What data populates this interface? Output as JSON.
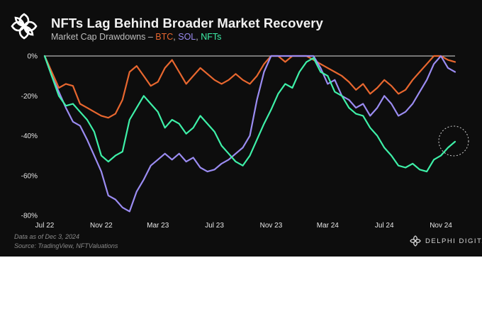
{
  "header": {
    "title": "NFTs Lag Behind Broader Market Recovery",
    "subtitle_prefix": "Market Cap Drawdowns – ",
    "subtitle_btc": "BTC",
    "subtitle_sep1": ", ",
    "subtitle_sol": "SOL",
    "subtitle_sep2": ", ",
    "subtitle_nft": "NFTs",
    "logo_icon": "delphi-knot-icon"
  },
  "footer": {
    "note": "Data as of Dec 3, 2024",
    "source": "Source: TradingView, NFTValuations",
    "brand": "DELPHI DIGITAL"
  },
  "colors": {
    "background": "#0d0d0d",
    "btc": "#e8672f",
    "sol": "#9b8cf2",
    "nfts": "#3ef0a8",
    "highlight_circle": "#cfcfcf"
  },
  "chart_data": {
    "type": "line",
    "title": "NFTs Lag Behind Broader Market Recovery",
    "subtitle": "Market Cap Drawdowns – BTC, SOL, NFTs",
    "x_start": "2022-07",
    "x_end": "2024-12",
    "xlim": [
      0,
      29
    ],
    "ylim": [
      -80,
      0
    ],
    "y_ticks": [
      0,
      -20,
      -40,
      -60,
      -80
    ],
    "y_tick_labels": [
      "0%",
      "-20%",
      "-40%",
      "-60%",
      "-80%"
    ],
    "x_ticks": [
      0,
      4,
      8,
      12,
      16,
      20,
      24,
      28
    ],
    "x_tick_labels": [
      "Jul 22",
      "Nov 22",
      "Mar 23",
      "Jul 23",
      "Nov 23",
      "Mar 24",
      "Jul 24",
      "Nov 24"
    ],
    "legend": "in-subtitle",
    "grid": false,
    "annotation": "dotted circle around latest NFT value",
    "series": [
      {
        "name": "BTC",
        "color": "#e8672f",
        "points": [
          [
            0,
            0
          ],
          [
            0.5,
            -8
          ],
          [
            1,
            -16
          ],
          [
            1.5,
            -14
          ],
          [
            2,
            -15
          ],
          [
            2.5,
            -24
          ],
          [
            3,
            -26
          ],
          [
            3.5,
            -28
          ],
          [
            4,
            -30
          ],
          [
            4.5,
            -31
          ],
          [
            5,
            -29
          ],
          [
            5.5,
            -22
          ],
          [
            6,
            -8
          ],
          [
            6.5,
            -5
          ],
          [
            7,
            -10
          ],
          [
            7.5,
            -15
          ],
          [
            8,
            -13
          ],
          [
            8.5,
            -6
          ],
          [
            9,
            -2
          ],
          [
            9.5,
            -8
          ],
          [
            10,
            -14
          ],
          [
            10.5,
            -10
          ],
          [
            11,
            -6
          ],
          [
            11.5,
            -9
          ],
          [
            12,
            -12
          ],
          [
            12.5,
            -14
          ],
          [
            13,
            -12
          ],
          [
            13.5,
            -9
          ],
          [
            14,
            -12
          ],
          [
            14.5,
            -14
          ],
          [
            15,
            -10
          ],
          [
            15.5,
            -4
          ],
          [
            16,
            0
          ],
          [
            16.5,
            0
          ],
          [
            17,
            -3
          ],
          [
            17.5,
            0
          ],
          [
            18,
            0
          ],
          [
            18.5,
            0
          ],
          [
            19,
            -2
          ],
          [
            19.5,
            -4
          ],
          [
            20,
            -6
          ],
          [
            20.5,
            -8
          ],
          [
            21,
            -10
          ],
          [
            21.5,
            -13
          ],
          [
            22,
            -17
          ],
          [
            22.5,
            -14
          ],
          [
            23,
            -19
          ],
          [
            23.5,
            -16
          ],
          [
            24,
            -12
          ],
          [
            24.5,
            -15
          ],
          [
            25,
            -19
          ],
          [
            25.5,
            -17
          ],
          [
            26,
            -12
          ],
          [
            26.5,
            -8
          ],
          [
            27,
            -4
          ],
          [
            27.5,
            0
          ],
          [
            28,
            0
          ],
          [
            28.5,
            -2
          ],
          [
            29,
            -3
          ]
        ]
      },
      {
        "name": "SOL",
        "color": "#9b8cf2",
        "points": [
          [
            0,
            0
          ],
          [
            0.5,
            -10
          ],
          [
            1,
            -18
          ],
          [
            1.5,
            -26
          ],
          [
            2,
            -33
          ],
          [
            2.5,
            -35
          ],
          [
            3,
            -42
          ],
          [
            3.5,
            -50
          ],
          [
            4,
            -58
          ],
          [
            4.5,
            -70
          ],
          [
            5,
            -72
          ],
          [
            5.5,
            -76
          ],
          [
            6,
            -78
          ],
          [
            6.5,
            -68
          ],
          [
            7,
            -62
          ],
          [
            7.5,
            -55
          ],
          [
            8,
            -52
          ],
          [
            8.5,
            -49
          ],
          [
            9,
            -52
          ],
          [
            9.5,
            -49
          ],
          [
            10,
            -53
          ],
          [
            10.5,
            -51
          ],
          [
            11,
            -56
          ],
          [
            11.5,
            -58
          ],
          [
            12,
            -57
          ],
          [
            12.5,
            -54
          ],
          [
            13,
            -52
          ],
          [
            13.5,
            -49
          ],
          [
            14,
            -46
          ],
          [
            14.5,
            -40
          ],
          [
            15,
            -22
          ],
          [
            15.5,
            -8
          ],
          [
            16,
            0
          ],
          [
            16.5,
            0
          ],
          [
            17,
            0
          ],
          [
            17.5,
            0
          ],
          [
            18,
            0
          ],
          [
            18.5,
            0
          ],
          [
            19,
            0
          ],
          [
            19.5,
            -6
          ],
          [
            20,
            -14
          ],
          [
            20.5,
            -12
          ],
          [
            21,
            -20
          ],
          [
            21.5,
            -22
          ],
          [
            22,
            -26
          ],
          [
            22.5,
            -24
          ],
          [
            23,
            -30
          ],
          [
            23.5,
            -26
          ],
          [
            24,
            -20
          ],
          [
            24.5,
            -24
          ],
          [
            25,
            -30
          ],
          [
            25.5,
            -28
          ],
          [
            26,
            -24
          ],
          [
            26.5,
            -18
          ],
          [
            27,
            -12
          ],
          [
            27.5,
            -4
          ],
          [
            28,
            0
          ],
          [
            28.5,
            -6
          ],
          [
            29,
            -8
          ]
        ]
      },
      {
        "name": "NFTs",
        "color": "#3ef0a8",
        "points": [
          [
            0,
            0
          ],
          [
            0.5,
            -10
          ],
          [
            1,
            -20
          ],
          [
            1.5,
            -25
          ],
          [
            2,
            -24
          ],
          [
            2.5,
            -28
          ],
          [
            3,
            -32
          ],
          [
            3.5,
            -38
          ],
          [
            4,
            -50
          ],
          [
            4.5,
            -53
          ],
          [
            5,
            -50
          ],
          [
            5.5,
            -48
          ],
          [
            6,
            -32
          ],
          [
            6.5,
            -26
          ],
          [
            7,
            -20
          ],
          [
            7.5,
            -24
          ],
          [
            8,
            -28
          ],
          [
            8.5,
            -36
          ],
          [
            9,
            -32
          ],
          [
            9.5,
            -34
          ],
          [
            10,
            -39
          ],
          [
            10.5,
            -36
          ],
          [
            11,
            -30
          ],
          [
            11.5,
            -34
          ],
          [
            12,
            -38
          ],
          [
            12.5,
            -45
          ],
          [
            13,
            -49
          ],
          [
            13.5,
            -53
          ],
          [
            14,
            -55
          ],
          [
            14.5,
            -50
          ],
          [
            15,
            -42
          ],
          [
            15.5,
            -34
          ],
          [
            16,
            -27
          ],
          [
            16.5,
            -19
          ],
          [
            17,
            -14
          ],
          [
            17.5,
            -16
          ],
          [
            18,
            -8
          ],
          [
            18.5,
            -3
          ],
          [
            19,
            -1
          ],
          [
            19.5,
            -8
          ],
          [
            20,
            -10
          ],
          [
            20.5,
            -18
          ],
          [
            21,
            -20
          ],
          [
            21.5,
            -26
          ],
          [
            22,
            -29
          ],
          [
            22.5,
            -30
          ],
          [
            23,
            -36
          ],
          [
            23.5,
            -40
          ],
          [
            24,
            -46
          ],
          [
            24.5,
            -50
          ],
          [
            25,
            -55
          ],
          [
            25.5,
            -56
          ],
          [
            26,
            -54
          ],
          [
            26.5,
            -57
          ],
          [
            27,
            -58
          ],
          [
            27.5,
            -52
          ],
          [
            28,
            -50
          ],
          [
            28.5,
            -46
          ],
          [
            29,
            -43
          ]
        ]
      }
    ]
  }
}
